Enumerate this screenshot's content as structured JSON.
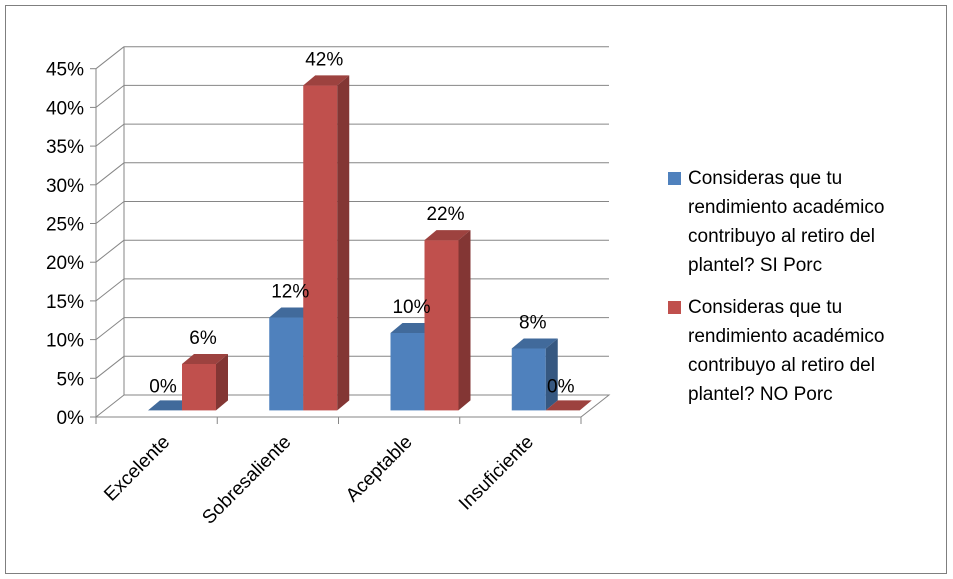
{
  "chart_data": {
    "type": "bar",
    "title": "",
    "xlabel": "",
    "ylabel": "",
    "ylim": [
      0,
      45
    ],
    "y_ticks": [
      "0%",
      "5%",
      "10%",
      "15%",
      "20%",
      "25%",
      "30%",
      "35%",
      "40%",
      "45%"
    ],
    "categories": [
      "Excelente",
      "Sobresaliente",
      "Aceptable",
      "Insuficiente"
    ],
    "series": [
      {
        "name": "Consideras que tu rendimiento académico contribuyo al retiro del plantel? SI Porc",
        "values": [
          0,
          12,
          10,
          8
        ],
        "labels": [
          "0%",
          "12%",
          "10%",
          "8%"
        ],
        "color": "#4f81bd"
      },
      {
        "name": "Consideras que tu rendimiento académico contribuyo al retiro del plantel? NO Porc",
        "values": [
          6,
          42,
          22,
          0
        ],
        "labels": [
          "6%",
          "42%",
          "22%",
          "0%"
        ],
        "color": "#c0504d"
      }
    ],
    "legend_position": "right",
    "grid": true
  },
  "legend": {
    "series_1_lines": [
      "Consideras que tu",
      "rendimiento académico",
      "contribuyo al retiro del",
      "plantel? SI Porc"
    ],
    "series_2_lines": [
      "Consideras que tu",
      "rendimiento académico",
      "contribuyo al retiro del",
      "plantel? NO Porc"
    ]
  }
}
